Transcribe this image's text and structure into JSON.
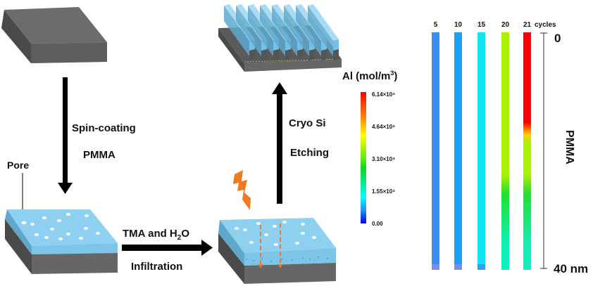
{
  "steps": {
    "spin_coating": "Spin-coating",
    "pmma": "PMMA",
    "pore": "Pore",
    "tma_prefix": "TMA and H",
    "tma_sub": "2",
    "tma_suffix": "O",
    "infiltration": "Infiltration",
    "cryo": "Cryo Si",
    "etching": "Etching"
  },
  "colorbar": {
    "title_prefix": "Al (mol/m",
    "title_sup": "3",
    "title_suffix": ")",
    "ticks": [
      "6.14×10⁴",
      "4.64×10⁴",
      "3.10×10⁴",
      "1.55×10⁴",
      "0.00"
    ]
  },
  "profiles": {
    "cycles_label": "cycles",
    "columns": [
      {
        "label": "5",
        "top_color": "#3a8ff5",
        "bottom_color": "#3a8ff5"
      },
      {
        "label": "10",
        "top_color": "#1aa0f8",
        "bottom_color": "#1aa0f8"
      },
      {
        "label": "15",
        "top_color": "#12e4f5",
        "bottom_color": "#12e4f5"
      },
      {
        "label": "20",
        "top_color": "#a6f200",
        "bottom_color": "#10f0b0"
      },
      {
        "label": "21",
        "top_color": "#ff0000",
        "bottom_color": "#10f0b0"
      }
    ],
    "scale_top": "0",
    "scale_bottom": "40 nm",
    "axis_label": "PMMA"
  },
  "colors": {
    "substrate": "#6e6e6e",
    "pmma": "#8fd0f0",
    "arrow": "#000000",
    "accent": "#f07a24"
  }
}
